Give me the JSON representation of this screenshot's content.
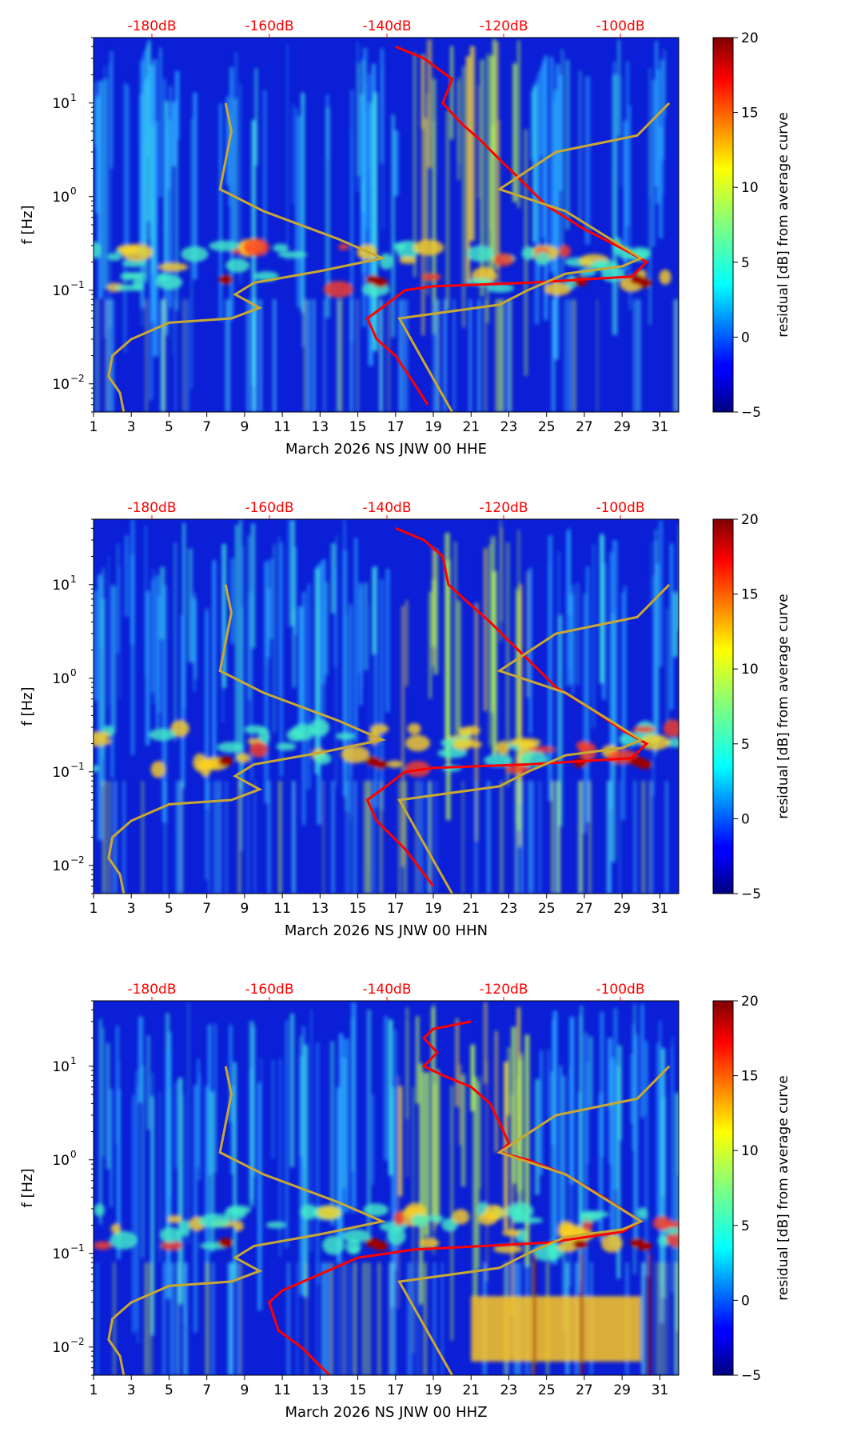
{
  "chart_data": [
    {
      "type": "heatmap",
      "title": "",
      "xlabel": "March 2026 NS JNW 00 HHE",
      "ylabel": "f [Hz]",
      "x_ticks": [
        "1",
        "3",
        "5",
        "7",
        "9",
        "11",
        "13",
        "15",
        "17",
        "19",
        "21",
        "23",
        "25",
        "27",
        "29",
        "31"
      ],
      "xlim": [
        1,
        32
      ],
      "y_scale": "log",
      "ylim": [
        0.005,
        50
      ],
      "y_ticks": [
        {
          "base": "10",
          "exp": "−2",
          "value": 0.01
        },
        {
          "base": "10",
          "exp": "−1",
          "value": 0.1
        },
        {
          "base": "10",
          "exp": "0",
          "value": 1
        },
        {
          "base": "10",
          "exp": "1",
          "value": 10
        }
      ],
      "top_ticks": [
        "-180dB",
        "-160dB",
        "-140dB",
        "-120dB",
        "-100dB"
      ],
      "top_tick_color": "#ff0000",
      "colorbar": {
        "label": "residual [dB] from average curve",
        "ticks": [
          "20",
          "15",
          "10",
          "5",
          "0",
          "−5"
        ],
        "range": [
          -5,
          20
        ],
        "colormap": "jet"
      },
      "series": [
        {
          "color": "#ff0000",
          "points": [
            [
              17,
              40
            ],
            [
              18.5,
              30
            ],
            [
              20,
              18
            ],
            [
              19.5,
              10
            ],
            [
              20.5,
              6
            ],
            [
              21.5,
              4
            ],
            [
              22.5,
              2.5
            ],
            [
              23.5,
              1.6
            ],
            [
              25,
              0.8
            ],
            [
              27,
              0.45
            ],
            [
              29,
              0.28
            ],
            [
              30.3,
              0.2
            ],
            [
              29.5,
              0.14
            ],
            [
              24,
              0.12
            ],
            [
              19,
              0.11
            ],
            [
              17.5,
              0.1
            ],
            [
              16.5,
              0.07
            ],
            [
              15.5,
              0.05
            ],
            [
              16,
              0.03
            ],
            [
              17,
              0.02
            ],
            [
              18,
              0.01
            ],
            [
              18.7,
              0.006
            ]
          ]
        },
        {
          "color": "#c8a832",
          "points": [
            [
              8,
              10
            ],
            [
              8.3,
              5
            ],
            [
              7.7,
              1.2
            ],
            [
              10,
              0.7
            ],
            [
              14,
              0.35
            ],
            [
              16.3,
              0.22
            ],
            [
              13,
              0.16
            ],
            [
              9.5,
              0.12
            ],
            [
              8.5,
              0.09
            ],
            [
              9.8,
              0.065
            ],
            [
              8.3,
              0.05
            ],
            [
              5,
              0.045
            ],
            [
              3,
              0.03
            ],
            [
              2,
              0.02
            ],
            [
              1.8,
              0.012
            ],
            [
              2.4,
              0.008
            ],
            [
              2.6,
              0.005
            ]
          ]
        },
        {
          "color": "#c8a832",
          "points": [
            [
              31.5,
              10
            ],
            [
              29.8,
              4.5
            ],
            [
              25.5,
              3
            ],
            [
              22.5,
              1.2
            ],
            [
              26,
              0.7
            ],
            [
              30,
              0.22
            ],
            [
              29,
              0.18
            ],
            [
              26,
              0.15
            ],
            [
              24,
              0.1
            ],
            [
              22.5,
              0.07
            ],
            [
              17.2,
              0.05
            ],
            [
              20,
              0.005
            ]
          ]
        }
      ]
    },
    {
      "type": "heatmap",
      "title": "",
      "xlabel": "March 2026 NS JNW 00 HHN",
      "ylabel": "f [Hz]",
      "x_ticks": [
        "1",
        "3",
        "5",
        "7",
        "9",
        "11",
        "13",
        "15",
        "17",
        "19",
        "21",
        "23",
        "25",
        "27",
        "29",
        "31"
      ],
      "xlim": [
        1,
        32
      ],
      "y_scale": "log",
      "ylim": [
        0.005,
        50
      ],
      "y_ticks": [
        {
          "base": "10",
          "exp": "−2",
          "value": 0.01
        },
        {
          "base": "10",
          "exp": "−1",
          "value": 0.1
        },
        {
          "base": "10",
          "exp": "0",
          "value": 1
        },
        {
          "base": "10",
          "exp": "1",
          "value": 10
        }
      ],
      "top_ticks": [
        "-180dB",
        "-160dB",
        "-140dB",
        "-120dB",
        "-100dB"
      ],
      "top_tick_color": "#ff0000",
      "colorbar": {
        "label": "residual [dB] from average curve",
        "ticks": [
          "20",
          "15",
          "10",
          "5",
          "0",
          "−5"
        ],
        "range": [
          -5,
          20
        ],
        "colormap": "jet"
      },
      "series": [
        {
          "color": "#ff0000",
          "points": [
            [
              17,
              40
            ],
            [
              18.5,
              30
            ],
            [
              19.5,
              20
            ],
            [
              19.8,
              10
            ],
            [
              21,
              6
            ],
            [
              22,
              4
            ],
            [
              23,
              2.5
            ],
            [
              24,
              1.6
            ],
            [
              25.5,
              0.8
            ],
            [
              27.5,
              0.45
            ],
            [
              29,
              0.28
            ],
            [
              30.3,
              0.2
            ],
            [
              29.5,
              0.14
            ],
            [
              24,
              0.12
            ],
            [
              19,
              0.11
            ],
            [
              17.5,
              0.1
            ],
            [
              16.5,
              0.07
            ],
            [
              15.5,
              0.05
            ],
            [
              16,
              0.03
            ],
            [
              17.5,
              0.015
            ],
            [
              19,
              0.006
            ]
          ]
        },
        {
          "color": "#c8a832",
          "points": [
            [
              8,
              10
            ],
            [
              8.3,
              5
            ],
            [
              7.7,
              1.2
            ],
            [
              10,
              0.7
            ],
            [
              14,
              0.35
            ],
            [
              16.3,
              0.22
            ],
            [
              13,
              0.16
            ],
            [
              9.5,
              0.12
            ],
            [
              8.5,
              0.09
            ],
            [
              9.8,
              0.065
            ],
            [
              8.3,
              0.05
            ],
            [
              5,
              0.045
            ],
            [
              3,
              0.03
            ],
            [
              2,
              0.02
            ],
            [
              1.8,
              0.012
            ],
            [
              2.4,
              0.008
            ],
            [
              2.6,
              0.005
            ]
          ]
        },
        {
          "color": "#c8a832",
          "points": [
            [
              31.5,
              10
            ],
            [
              29.8,
              4.5
            ],
            [
              25.5,
              3
            ],
            [
              22.5,
              1.2
            ],
            [
              26,
              0.7
            ],
            [
              30,
              0.22
            ],
            [
              29,
              0.18
            ],
            [
              26,
              0.15
            ],
            [
              24,
              0.1
            ],
            [
              22.5,
              0.07
            ],
            [
              17.2,
              0.05
            ],
            [
              20,
              0.005
            ]
          ]
        }
      ]
    },
    {
      "type": "heatmap",
      "title": "",
      "xlabel": "March 2026 NS JNW 00 HHZ",
      "ylabel": "f [Hz]",
      "x_ticks": [
        "1",
        "3",
        "5",
        "7",
        "9",
        "11",
        "13",
        "15",
        "17",
        "19",
        "21",
        "23",
        "25",
        "27",
        "29",
        "31"
      ],
      "xlim": [
        1,
        32
      ],
      "y_scale": "log",
      "ylim": [
        0.005,
        50
      ],
      "y_ticks": [
        {
          "base": "10",
          "exp": "−2",
          "value": 0.01
        },
        {
          "base": "10",
          "exp": "−1",
          "value": 0.1
        },
        {
          "base": "10",
          "exp": "0",
          "value": 1
        },
        {
          "base": "10",
          "exp": "1",
          "value": 10
        }
      ],
      "top_ticks": [
        "-180dB",
        "-160dB",
        "-140dB",
        "-120dB",
        "-100dB"
      ],
      "top_tick_color": "#ff0000",
      "colorbar": {
        "label": "residual [dB] from average curve",
        "ticks": [
          "20",
          "15",
          "10",
          "5",
          "0",
          "−5"
        ],
        "range": [
          -5,
          20
        ],
        "colormap": "jet"
      },
      "series": [
        {
          "color": "#ff0000",
          "points": [
            [
              21,
              30
            ],
            [
              19,
              25
            ],
            [
              18.5,
              20
            ],
            [
              19.2,
              14
            ],
            [
              18.5,
              10
            ],
            [
              19.5,
              8
            ],
            [
              21,
              6
            ],
            [
              22,
              4
            ],
            [
              22.5,
              2.5
            ],
            [
              23,
              1.5
            ],
            [
              22.5,
              1.2
            ],
            [
              24,
              1
            ],
            [
              26,
              0.7
            ],
            [
              28,
              0.4
            ],
            [
              30,
              0.22
            ],
            [
              29,
              0.17
            ],
            [
              25,
              0.13
            ],
            [
              18,
              0.11
            ],
            [
              15,
              0.09
            ],
            [
              13,
              0.06
            ],
            [
              11,
              0.04
            ],
            [
              10.3,
              0.03
            ],
            [
              10.8,
              0.015
            ],
            [
              12,
              0.01
            ],
            [
              13.5,
              0.005
            ]
          ]
        },
        {
          "color": "#c8a832",
          "points": [
            [
              8,
              10
            ],
            [
              8.3,
              5
            ],
            [
              7.7,
              1.2
            ],
            [
              10,
              0.7
            ],
            [
              14,
              0.35
            ],
            [
              16.3,
              0.22
            ],
            [
              13,
              0.16
            ],
            [
              9.5,
              0.12
            ],
            [
              8.5,
              0.09
            ],
            [
              9.8,
              0.065
            ],
            [
              8.3,
              0.05
            ],
            [
              5,
              0.045
            ],
            [
              3,
              0.03
            ],
            [
              2,
              0.02
            ],
            [
              1.8,
              0.012
            ],
            [
              2.4,
              0.008
            ],
            [
              2.6,
              0.005
            ]
          ]
        },
        {
          "color": "#c8a832",
          "points": [
            [
              31.5,
              10
            ],
            [
              29.8,
              4.5
            ],
            [
              25.5,
              3
            ],
            [
              22.5,
              1.2
            ],
            [
              26,
              0.7
            ],
            [
              30,
              0.22
            ],
            [
              29,
              0.18
            ],
            [
              26,
              0.15
            ],
            [
              24,
              0.1
            ],
            [
              22.5,
              0.07
            ],
            [
              17.2,
              0.05
            ],
            [
              20,
              0.005
            ]
          ]
        }
      ]
    }
  ]
}
